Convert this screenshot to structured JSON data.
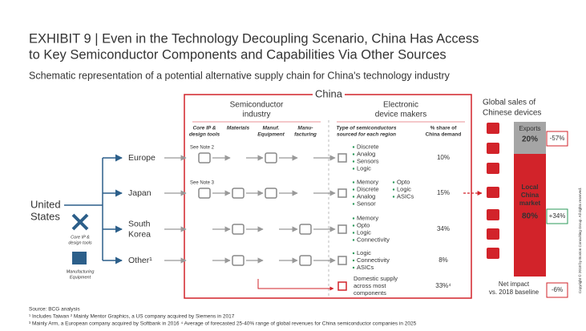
{
  "header": {
    "title_lines": [
      "EXHIBIT 9 | Even in the Technology Decoupling Scenario, China Has Access",
      "to Key Semiconductor Components and Capabilities Via Other Sources"
    ],
    "subtitle": "Schematic representation of a potential alternative supply chain for China's technology industry"
  },
  "origin": {
    "lines": [
      "United",
      "States"
    ],
    "icons": [
      [
        "Core IP &",
        "design tools"
      ],
      [
        "Manufacturing",
        "Equipment"
      ]
    ]
  },
  "china": {
    "label": "China",
    "semiconductor_heading": [
      "Semiconductor",
      "industry"
    ],
    "device_heading": [
      "Electronic",
      "device makers"
    ],
    "columns": [
      [
        "Core IP &",
        "design tools"
      ],
      [
        "Materials"
      ],
      [
        "Manuf.",
        "Equipment"
      ],
      [
        "Manu-",
        "facturing"
      ]
    ],
    "type_heading": [
      "Type of semiconductors",
      "sourced for each region"
    ],
    "share_heading": [
      "% share of",
      "China demand"
    ],
    "rows": [
      {
        "region": [
          "Europe"
        ],
        "note": "See Note 2",
        "types": [
          [
            "Discrete",
            "Analog",
            "Sensors",
            "Logic"
          ]
        ],
        "share": "10%"
      },
      {
        "region": [
          "Japan"
        ],
        "note": "See Note 3",
        "types": [
          [
            "Memory",
            "Discrete",
            "Analog",
            "Sensor"
          ],
          [
            "Opto",
            "Logic",
            "ASICs"
          ]
        ],
        "share": "15%"
      },
      {
        "region": [
          "South",
          "Korea"
        ],
        "types": [
          [
            "Memory",
            "Opto",
            "Logic",
            "Connectivity"
          ]
        ],
        "share": "34%"
      },
      {
        "region": [
          "Other¹"
        ],
        "types": [
          [
            "Logic",
            "Connectivity",
            "ASICs"
          ]
        ],
        "share": "8%"
      }
    ],
    "domestic": {
      "lines": [
        "Domestic supply",
        "across most",
        "components"
      ],
      "share": "33%⁴"
    }
  },
  "sales": {
    "heading": [
      "Global sales of",
      "Chinese devices"
    ],
    "exports": {
      "label": "Exports",
      "share": "20%",
      "change": "-57%"
    },
    "local": {
      "label": [
        "Local",
        "China",
        "market"
      ],
      "share": "80%",
      "change": "+34%"
    },
    "net": {
      "label": [
        "Net impact",
        "vs. 2018 baseline"
      ],
      "change": "-6%"
    }
  },
  "footnotes": [
    "Source: BCG analysis",
    "¹ Includes Taiwan   ² Mainly Mentor Graphics, a US company acquired by Siemens in 2017",
    "³ Mainly Arm, a European company acquired by Softbank in 2016   ⁴ Average of forecasted 25-40% range of global revenues for China semiconductor companies in 2025"
  ],
  "copyright": "Copyright © 2018 by Boston Consulting Group. All rights reserved."
}
